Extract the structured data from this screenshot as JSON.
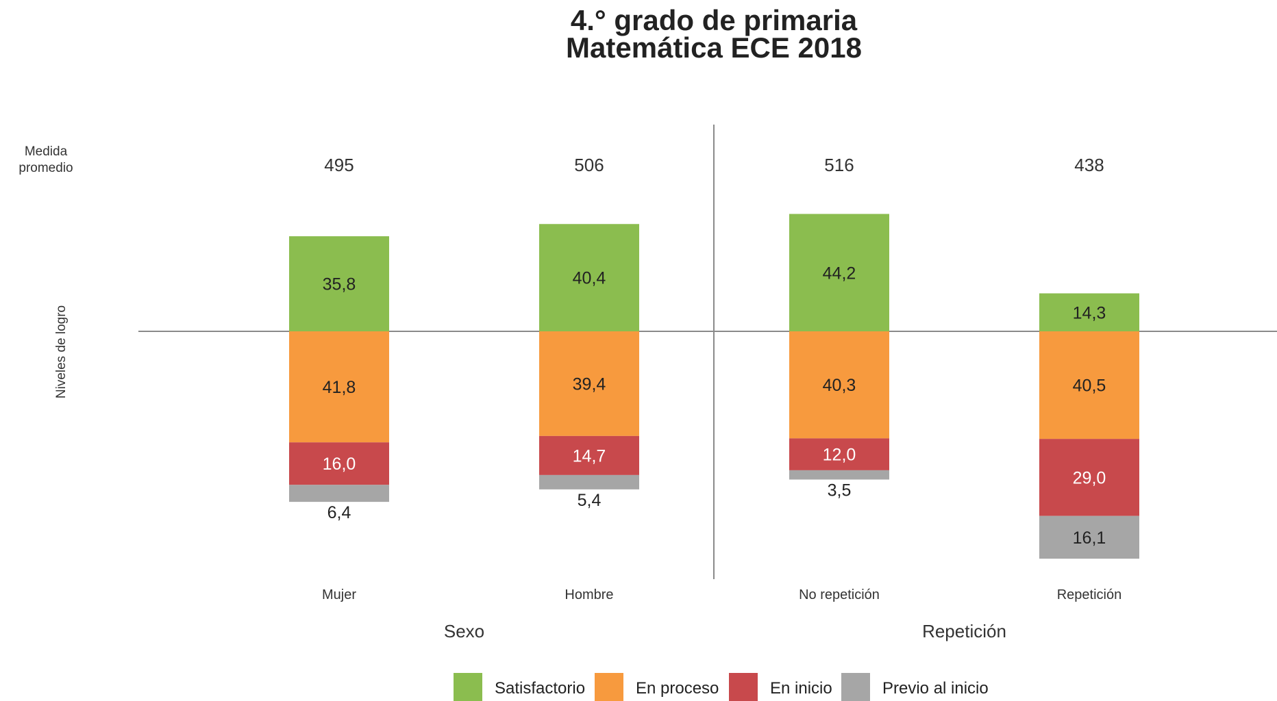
{
  "chart_data": {
    "type": "bar",
    "stacked": "diverging",
    "title_lines": [
      "4.° grado de primaria",
      "Matemática ECE 2018"
    ],
    "row_label_lines": [
      "Medida",
      "promedio"
    ],
    "ylabel": "Niveles de logro",
    "categories": [
      "Mujer",
      "Hombre",
      "No repetición",
      "Repetición"
    ],
    "groups": [
      {
        "label": "Sexo",
        "categories": [
          "Mujer",
          "Hombre"
        ]
      },
      {
        "label": "Repetición",
        "categories": [
          "No repetición",
          "Repetición"
        ]
      }
    ],
    "average_scores": [
      "495",
      "506",
      "516",
      "438"
    ],
    "series": [
      {
        "name": "Satisfactorio",
        "color": "#8bbd4f",
        "direction": "up",
        "values": [
          35.8,
          40.4,
          44.2,
          14.3
        ],
        "labels": [
          "35,8",
          "40,4",
          "44,2",
          "14,3"
        ],
        "label_color": "#222222"
      },
      {
        "name": "En proceso",
        "color": "#f79a3e",
        "direction": "down",
        "values": [
          41.8,
          39.4,
          40.3,
          40.5
        ],
        "labels": [
          "41,8",
          "39,4",
          "40,3",
          "40,5"
        ],
        "label_color": "#222222"
      },
      {
        "name": "En inicio",
        "color": "#c8494c",
        "direction": "down",
        "values": [
          16.0,
          14.7,
          12.0,
          29.0
        ],
        "labels": [
          "16,0",
          "14,7",
          "12,0",
          "29,0"
        ],
        "label_color": "#ffffff"
      },
      {
        "name": "Previo al inicio",
        "color": "#a6a6a6",
        "direction": "down",
        "values": [
          6.4,
          5.4,
          3.5,
          16.1
        ],
        "labels": [
          "6,4",
          "5,4",
          "3,5",
          "16,1"
        ],
        "label_color": "#222222"
      }
    ],
    "legend_position": "bottom-center",
    "grid": false
  }
}
